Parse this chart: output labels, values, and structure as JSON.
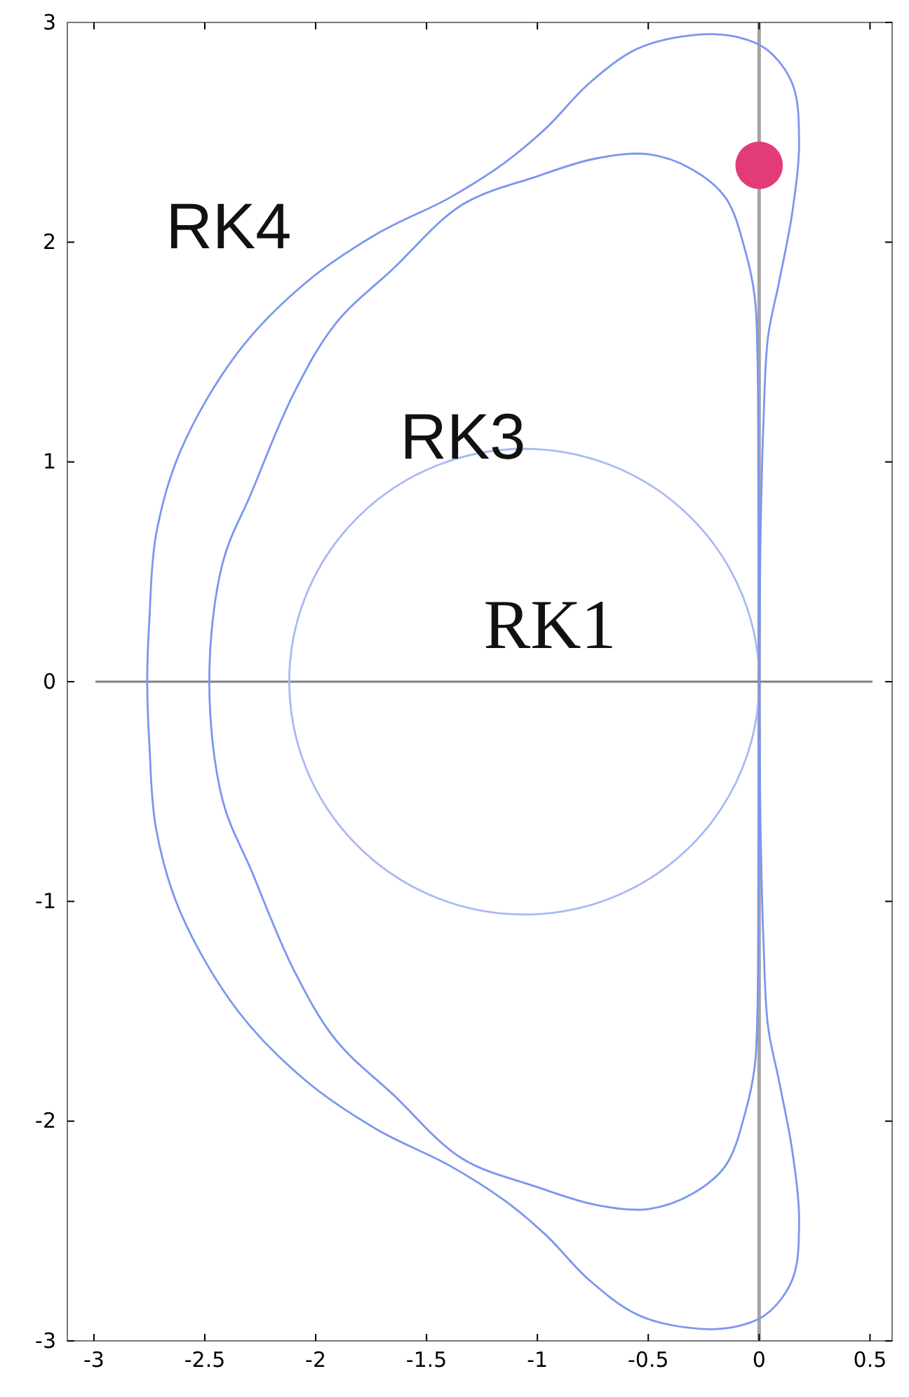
{
  "chart_data": {
    "type": "scatter",
    "xlim": [
      -3.12,
      0.6
    ],
    "ylim": [
      -3,
      3
    ],
    "xticks": [
      -3,
      -2.5,
      -2,
      -1.5,
      -1,
      -0.5,
      0,
      0.5
    ],
    "yticks": [
      -3,
      -2,
      -1,
      0,
      1,
      2,
      3
    ],
    "grid": false,
    "series": [
      {
        "marker": "circle",
        "color": "#e23b78",
        "x": [
          0
        ],
        "values": [
          2.35
        ]
      }
    ],
    "ref_lines": [
      {
        "axis": "x",
        "value": 0,
        "color": "#a3a3a3"
      },
      {
        "axis": "y",
        "value": 0,
        "color": "#808080"
      }
    ],
    "annotations": [
      "RK4",
      "RK3",
      "RK1"
    ]
  }
}
